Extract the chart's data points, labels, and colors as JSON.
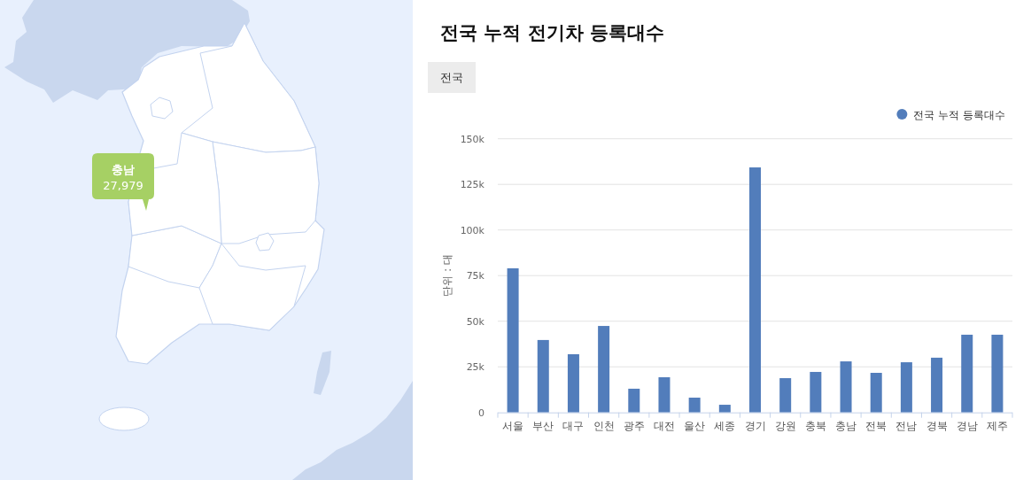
{
  "chart_data": {
    "type": "bar",
    "title": "전국 누적 전기차 등록대수",
    "subtitle": "전국",
    "ylabel": "단위 : 대",
    "categories": [
      "서울",
      "부산",
      "대구",
      "인천",
      "광주",
      "대전",
      "울산",
      "세종",
      "경기",
      "강원",
      "충북",
      "충남",
      "전북",
      "전남",
      "경북",
      "경남",
      "제주"
    ],
    "series": [
      {
        "name": "전국 누적 등록대수",
        "color": "#527dbb",
        "values": [
          79000,
          39700,
          31900,
          47400,
          13000,
          19300,
          8100,
          4200,
          134300,
          18800,
          22200,
          27979,
          21700,
          27500,
          30000,
          42600,
          42600
        ]
      }
    ],
    "ylim": [
      0,
      150000
    ],
    "yticks": [
      0,
      {
        "value": 25000,
        "label": "25k"
      },
      {
        "value": 50000,
        "label": "50k"
      },
      {
        "value": 75000,
        "label": "75k"
      },
      {
        "value": 100000,
        "label": "100k"
      },
      {
        "value": 125000,
        "label": "125k"
      },
      {
        "value": 150000,
        "label": "150k"
      }
    ],
    "grid": "y",
    "legend": "top right",
    "annotations": [
      "충남",
      "27,979"
    ]
  }
}
